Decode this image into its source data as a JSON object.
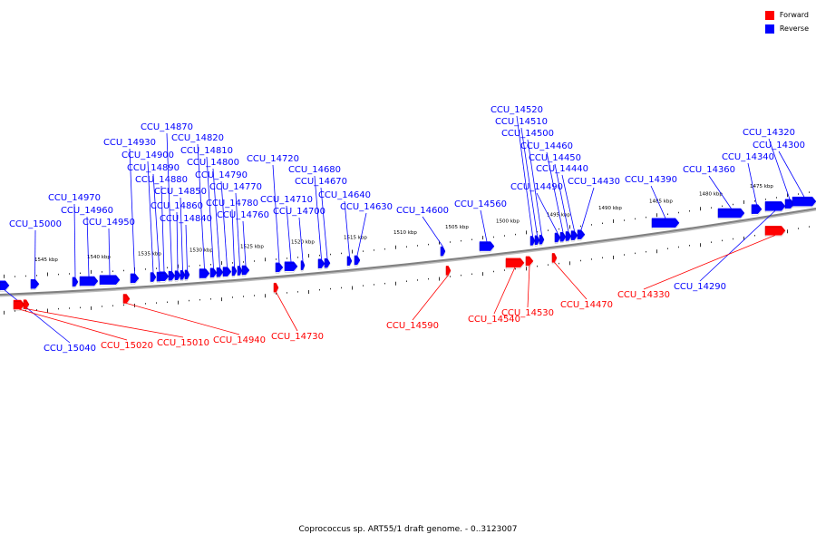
{
  "colors": {
    "forward": "#ff0000",
    "reverse": "#0000ff",
    "backbone": "#808080"
  },
  "legend": [
    {
      "label": "Forward",
      "color": "#ff0000"
    },
    {
      "label": "Reverse",
      "color": "#0000ff"
    }
  ],
  "caption": "Coprococcus sp. ART55/1 draft genome. - 0..3123007",
  "ruler": [
    "1545 kbp",
    "1540 kbp",
    "1535 kbp",
    "1530 kbp",
    "1525 kbp",
    "1520 kbp",
    "1515 kbp",
    "1510 kbp",
    "1505 kbp",
    "1500 kbp",
    "1495 kbp",
    "1490 kbp",
    "1485 kbp",
    "1480 kbp",
    "1475 kbp"
  ],
  "genes": [
    {
      "id": "CCU_15000",
      "strand": "reverse"
    },
    {
      "id": "CCU_14970",
      "strand": "reverse"
    },
    {
      "id": "CCU_14960",
      "strand": "reverse"
    },
    {
      "id": "CCU_14950",
      "strand": "reverse"
    },
    {
      "id": "CCU_14930",
      "strand": "reverse"
    },
    {
      "id": "CCU_14900",
      "strand": "reverse"
    },
    {
      "id": "CCU_14890",
      "strand": "reverse"
    },
    {
      "id": "CCU_14880",
      "strand": "reverse"
    },
    {
      "id": "CCU_14870",
      "strand": "reverse"
    },
    {
      "id": "CCU_14860",
      "strand": "reverse"
    },
    {
      "id": "CCU_14850",
      "strand": "reverse"
    },
    {
      "id": "CCU_14840",
      "strand": "reverse"
    },
    {
      "id": "CCU_14820",
      "strand": "reverse"
    },
    {
      "id": "CCU_14810",
      "strand": "reverse"
    },
    {
      "id": "CCU_14800",
      "strand": "reverse"
    },
    {
      "id": "CCU_14790",
      "strand": "reverse"
    },
    {
      "id": "CCU_14780",
      "strand": "reverse"
    },
    {
      "id": "CCU_14770",
      "strand": "reverse"
    },
    {
      "id": "CCU_14760",
      "strand": "reverse"
    },
    {
      "id": "CCU_14720",
      "strand": "reverse"
    },
    {
      "id": "CCU_14710",
      "strand": "reverse"
    },
    {
      "id": "CCU_14700",
      "strand": "reverse"
    },
    {
      "id": "CCU_14680",
      "strand": "reverse"
    },
    {
      "id": "CCU_14670",
      "strand": "reverse"
    },
    {
      "id": "CCU_14640",
      "strand": "reverse"
    },
    {
      "id": "CCU_14630",
      "strand": "reverse"
    },
    {
      "id": "CCU_14600",
      "strand": "reverse"
    },
    {
      "id": "CCU_14560",
      "strand": "reverse"
    },
    {
      "id": "CCU_14520",
      "strand": "reverse"
    },
    {
      "id": "CCU_14510",
      "strand": "reverse"
    },
    {
      "id": "CCU_14500",
      "strand": "reverse"
    },
    {
      "id": "CCU_14490",
      "strand": "reverse"
    },
    {
      "id": "CCU_14460",
      "strand": "reverse"
    },
    {
      "id": "CCU_14450",
      "strand": "reverse"
    },
    {
      "id": "CCU_14440",
      "strand": "reverse"
    },
    {
      "id": "CCU_14430",
      "strand": "reverse"
    },
    {
      "id": "CCU_14390",
      "strand": "reverse"
    },
    {
      "id": "CCU_14360",
      "strand": "reverse"
    },
    {
      "id": "CCU_14340",
      "strand": "reverse"
    },
    {
      "id": "CCU_14320",
      "strand": "reverse"
    },
    {
      "id": "CCU_14300",
      "strand": "reverse"
    },
    {
      "id": "CCU_14290",
      "strand": "reverse"
    },
    {
      "id": "CCU_15040",
      "strand": "reverse"
    },
    {
      "id": "CCU_15020",
      "strand": "forward"
    },
    {
      "id": "CCU_15010",
      "strand": "forward"
    },
    {
      "id": "CCU_14940",
      "strand": "forward"
    },
    {
      "id": "CCU_14730",
      "strand": "forward"
    },
    {
      "id": "CCU_14590",
      "strand": "forward"
    },
    {
      "id": "CCU_14540",
      "strand": "forward"
    },
    {
      "id": "CCU_14530",
      "strand": "forward"
    },
    {
      "id": "CCU_14470",
      "strand": "forward"
    },
    {
      "id": "CCU_14330",
      "strand": "forward"
    }
  ]
}
